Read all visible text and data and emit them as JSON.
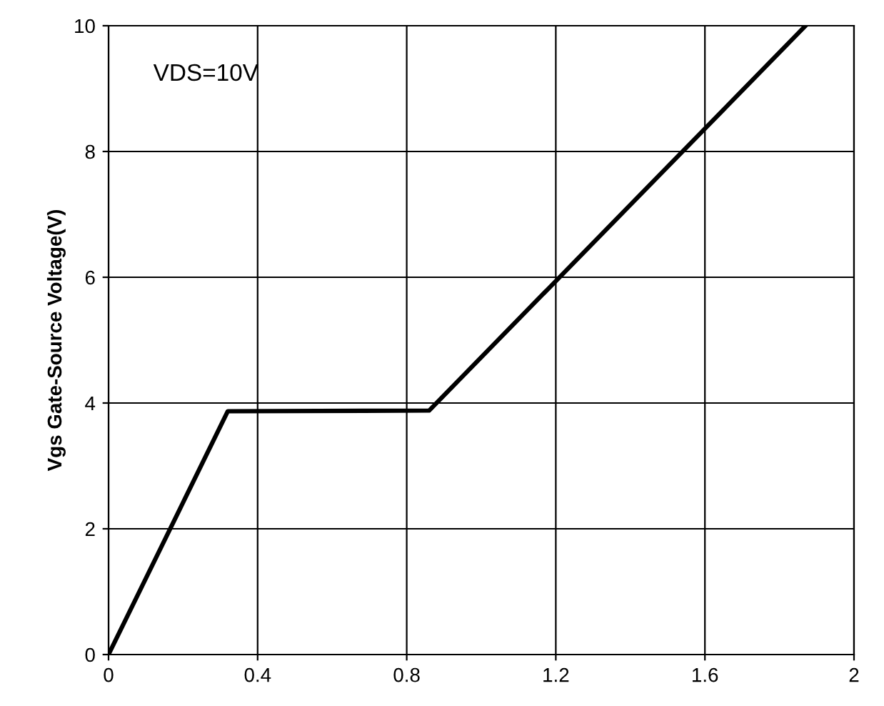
{
  "chart_data": {
    "type": "line",
    "ylabel": "Vgs Gate-Source Voltage(V)",
    "annotations": [
      "VDS=10V"
    ],
    "x": [
      0,
      0.32,
      0.86,
      1.87
    ],
    "series": [
      {
        "color": "#000000",
        "values": [
          0,
          3.87,
          3.88,
          10
        ]
      }
    ],
    "xlim": [
      0,
      2
    ],
    "xticks": [
      0,
      0.4,
      0.8,
      1.2,
      1.6,
      2
    ],
    "ylim": [
      0,
      10
    ],
    "yticks": [
      0,
      2,
      4,
      6,
      8,
      10
    ],
    "grid": true,
    "marker": "none",
    "line_style": "solid"
  }
}
